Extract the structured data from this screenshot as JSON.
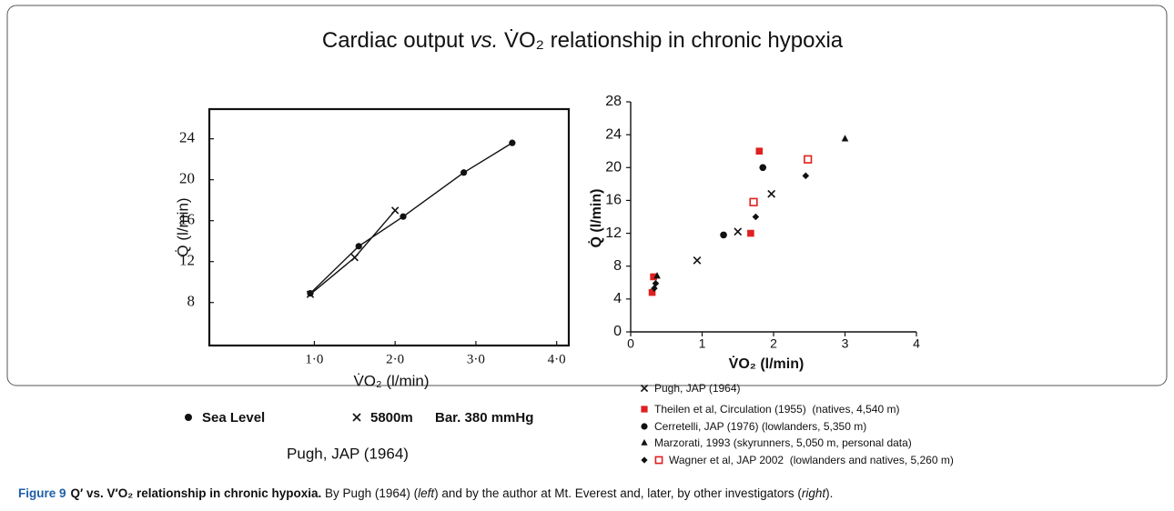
{
  "title": [
    "Cardiac output ",
    "vs.",
    " V̇O₂ relationship in chronic hypoxia"
  ],
  "chart_data": [
    {
      "type": "line",
      "xlabel": "V̇O₂ (l/min)",
      "ylabel": "Q̇ (l/min)",
      "xlim": [
        -0.3,
        4.15
      ],
      "ylim": [
        3.8,
        26.9
      ],
      "xticks": [
        {
          "value": 1,
          "label": "1·0"
        },
        {
          "value": 2,
          "label": "2·0"
        },
        {
          "value": 3,
          "label": "3·0"
        },
        {
          "value": 4,
          "label": "4·0"
        }
      ],
      "yticks": [
        8,
        12,
        16,
        20,
        24
      ],
      "series": [
        {
          "name": "Sea Level",
          "marker": "circle",
          "color": "#111111",
          "x": [
            0.95,
            1.55,
            2.1,
            2.85,
            3.45
          ],
          "y": [
            8.9,
            13.5,
            16.4,
            20.7,
            23.6
          ]
        },
        {
          "name": "5800m",
          "marker": "x",
          "color": "#111111",
          "x": [
            0.95,
            1.5,
            2.0
          ],
          "y": [
            8.8,
            12.4,
            17.0
          ]
        }
      ],
      "legend_note": "Bar. 380 mmHg",
      "source": "Pugh, JAP (1964)"
    },
    {
      "type": "scatter",
      "xlabel": "V̇O₂ (l/min)",
      "ylabel": "Q̇ (l/min)",
      "xlim": [
        0,
        4
      ],
      "ylim": [
        0,
        28
      ],
      "xticks": [
        0,
        1,
        2,
        3,
        4
      ],
      "yticks": [
        0,
        4,
        8,
        12,
        16,
        20,
        24,
        28
      ],
      "series": [
        {
          "name": "Pugh, JAP (1964)",
          "marker": "x",
          "color": "#111111",
          "x": [
            0.93,
            1.5,
            1.97
          ],
          "y": [
            8.7,
            12.2,
            16.8
          ]
        },
        {
          "name": "Theilen et al, Circulation (1955)  (natives, 4,540 m)",
          "marker": "square",
          "color": "#e02020",
          "x": [
            0.3,
            0.32,
            1.68,
            1.8
          ],
          "y": [
            4.8,
            6.7,
            12,
            22
          ]
        },
        {
          "name": "Cerretelli, JAP (1976) (lowlanders, 5,350 m)",
          "marker": "circle",
          "color": "#111111",
          "x": [
            1.3,
            1.85
          ],
          "y": [
            11.8,
            20
          ]
        },
        {
          "name": "Marzorati, 1993 (skyrunners, 5,050 m, personal data)",
          "marker": "triangle",
          "color": "#111111",
          "x": [
            0.37,
            3.0
          ],
          "y": [
            6.8,
            23.5
          ]
        },
        {
          "name": "Wagner et al, JAP 2002  (lowlanders and natives, 5,260 m)",
          "marker": "diamond",
          "color": "#111111",
          "x": [
            0.33,
            0.35,
            1.75,
            2.45
          ],
          "y": [
            5.3,
            5.9,
            14,
            19
          ]
        },
        {
          "marker": "square-open",
          "color": "#e02020",
          "x": [
            1.72,
            2.48
          ],
          "y": [
            15.8,
            21
          ]
        }
      ]
    }
  ],
  "caption": {
    "label": "Figure 9",
    "title": "Q′ vs. V′O₂ relationship in chronic hypoxia.",
    "body": [
      " By Pugh (1964) (",
      "left",
      ") and by the author at Mt. Everest and, later, by other investigators (",
      "right",
      ")."
    ]
  }
}
